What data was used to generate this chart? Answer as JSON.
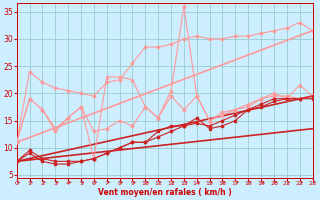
{
  "xlabel": "Vent moyen/en rafales ( km/h )",
  "bg_color": "#cceeff",
  "grid_color": "#99cccc",
  "x_ticks": [
    0,
    1,
    2,
    3,
    4,
    5,
    6,
    7,
    8,
    9,
    10,
    11,
    12,
    13,
    14,
    15,
    16,
    17,
    18,
    19,
    20,
    21,
    22,
    23
  ],
  "y_ticks": [
    5,
    10,
    15,
    20,
    25,
    30,
    35
  ],
  "xlim": [
    0,
    23
  ],
  "ylim": [
    4.5,
    36.5
  ],
  "lines": [
    {
      "x": [
        0,
        1,
        2,
        3,
        4,
        5,
        6,
        7,
        8,
        9,
        10,
        11,
        12,
        13,
        14,
        15,
        16,
        17,
        18,
        19,
        20,
        21,
        22,
        23
      ],
      "y": [
        7.5,
        9.5,
        8,
        7.5,
        7.5,
        7.5,
        8,
        9,
        10,
        11,
        11,
        12,
        13,
        14,
        14.5,
        14,
        15,
        16,
        17,
        18,
        19,
        19,
        19,
        19
      ],
      "color": "#cc2222",
      "lw": 0.8,
      "marker": "D",
      "ms": 1.5,
      "zorder": 5
    },
    {
      "x": [
        0,
        1,
        2,
        3,
        4,
        5,
        6,
        7,
        8,
        9,
        10,
        11,
        12,
        13,
        14,
        15,
        16,
        17,
        18,
        19,
        20,
        21,
        22,
        23
      ],
      "y": [
        7.5,
        9,
        7.5,
        7,
        7,
        7.5,
        8,
        9,
        10,
        11,
        11,
        13,
        14,
        14,
        15.5,
        13.5,
        14,
        15,
        17,
        17.5,
        18.5,
        19,
        19,
        19.5
      ],
      "color": "#cc2222",
      "lw": 0.8,
      "marker": "s",
      "ms": 1.5,
      "zorder": 5
    },
    {
      "x": [
        0,
        23
      ],
      "y": [
        7.5,
        19.5
      ],
      "color": "#cc2222",
      "lw": 1.2,
      "marker": null,
      "ms": 0,
      "zorder": 3
    },
    {
      "x": [
        0,
        23
      ],
      "y": [
        7.5,
        13.5
      ],
      "color": "#cc2222",
      "lw": 1.2,
      "marker": null,
      "ms": 0,
      "zorder": 3
    },
    {
      "x": [
        0,
        1,
        2,
        3,
        4,
        5,
        6,
        7,
        8,
        9,
        10,
        11,
        12,
        13,
        14,
        15,
        16,
        17,
        18,
        19,
        20,
        21,
        22,
        23
      ],
      "y": [
        11,
        19,
        17,
        13,
        15.5,
        17.5,
        13,
        13.5,
        15,
        14,
        17.5,
        15.5,
        19.5,
        17,
        19.5,
        15,
        16.5,
        17,
        17.5,
        19,
        19.5,
        19.5,
        19,
        19.5
      ],
      "color": "#ff9999",
      "lw": 0.8,
      "marker": "D",
      "ms": 1.5,
      "zorder": 4
    },
    {
      "x": [
        0,
        1,
        2,
        3,
        4,
        5,
        6,
        7,
        8,
        9,
        10,
        11,
        12,
        13,
        14,
        15,
        16,
        17,
        18,
        19,
        20,
        21,
        22,
        23
      ],
      "y": [
        11,
        19,
        17,
        13.5,
        15.5,
        17.5,
        8,
        23,
        23,
        22.5,
        17.5,
        15.5,
        20.5,
        36,
        19.5,
        15,
        16,
        17,
        18,
        19,
        20,
        19,
        21.5,
        19.5
      ],
      "color": "#ff9999",
      "lw": 0.8,
      "marker": "^",
      "ms": 2.0,
      "zorder": 4
    },
    {
      "x": [
        0,
        23
      ],
      "y": [
        11,
        31.5
      ],
      "color": "#ff9999",
      "lw": 1.2,
      "marker": null,
      "ms": 0,
      "zorder": 2
    },
    {
      "x": [
        0,
        1,
        2,
        3,
        4,
        5,
        6,
        7,
        8,
        9,
        10,
        11,
        12,
        13,
        14,
        15,
        16,
        17,
        18,
        19,
        20,
        21,
        22,
        23
      ],
      "y": [
        11,
        24,
        22,
        21,
        20.5,
        20,
        19.5,
        22,
        22.5,
        25.5,
        28.5,
        28.5,
        29,
        30,
        30.5,
        30,
        30,
        30.5,
        30.5,
        31,
        31.5,
        32,
        33,
        31.5
      ],
      "color": "#ff9999",
      "lw": 0.8,
      "marker": "D",
      "ms": 1.5,
      "zorder": 2
    }
  ]
}
